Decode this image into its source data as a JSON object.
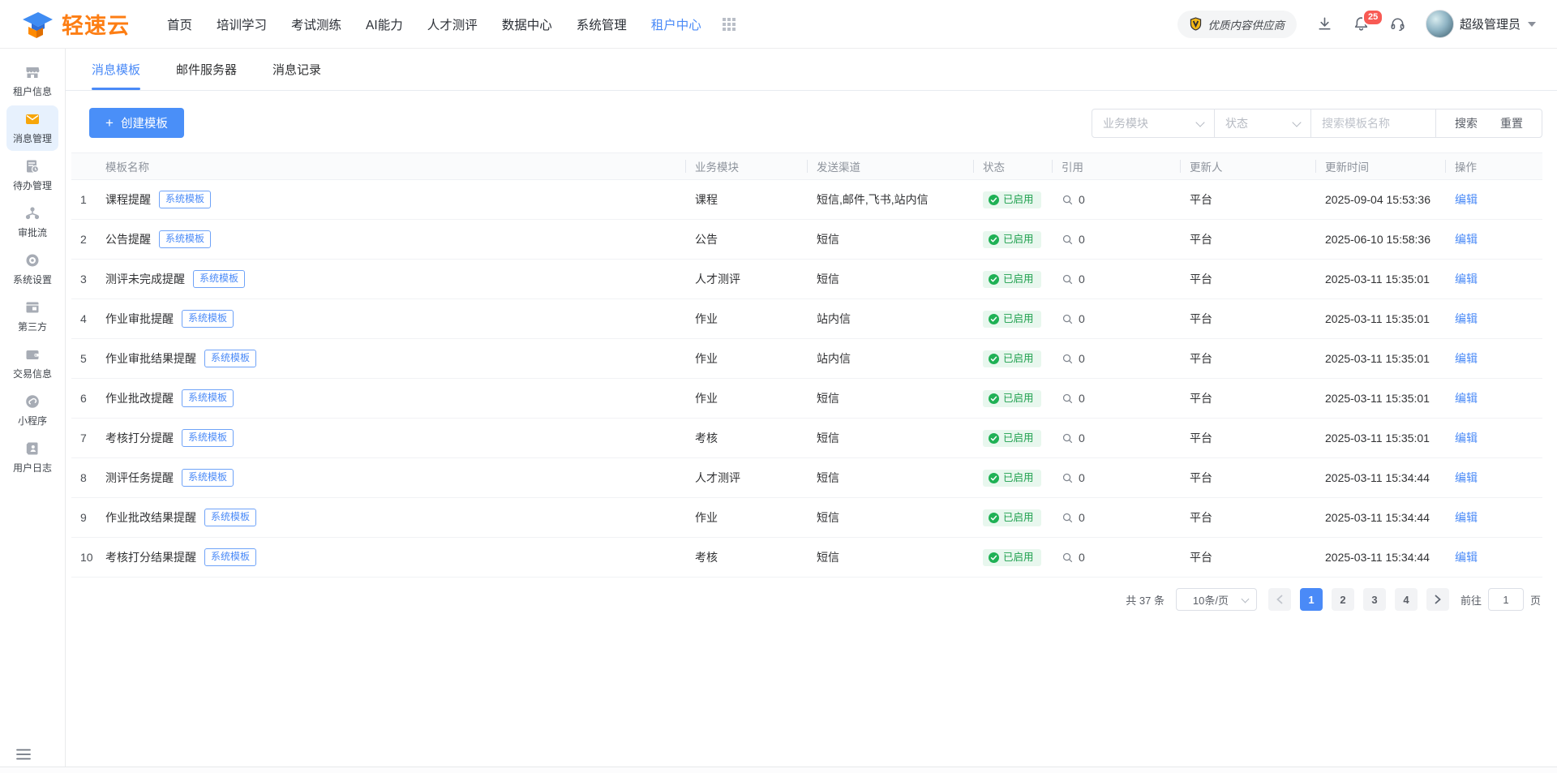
{
  "navbar": {
    "brand": "轻速云",
    "menu": [
      "首页",
      "培训学习",
      "考试测练",
      "AI能力",
      "人才测评",
      "数据中心",
      "系统管理",
      "租户中心"
    ],
    "active_menu": "租户中心",
    "supplier_badge": "优质内容供应商",
    "notification_count": "25",
    "user_name": "超级管理员"
  },
  "sidebar": {
    "items": [
      {
        "label": "租户信息",
        "icon": "tenant-info",
        "active": false
      },
      {
        "label": "消息管理",
        "icon": "message-management",
        "active": true
      },
      {
        "label": "待办管理",
        "icon": "todo-management",
        "active": false
      },
      {
        "label": "审批流",
        "icon": "approval-flow",
        "active": false
      },
      {
        "label": "系统设置",
        "icon": "system-settings",
        "active": false
      },
      {
        "label": "第三方",
        "icon": "third-party",
        "active": false
      },
      {
        "label": "交易信息",
        "icon": "transaction-info",
        "active": false
      },
      {
        "label": "小程序",
        "icon": "mini-program",
        "active": false
      },
      {
        "label": "用户日志",
        "icon": "user-log",
        "active": false
      }
    ]
  },
  "tabs": [
    "消息模板",
    "邮件服务器",
    "消息记录"
  ],
  "active_tab": "消息模板",
  "toolbar": {
    "create_label": "创建模板",
    "filters": {
      "module_placeholder": "业务模块",
      "status_placeholder": "状态",
      "search_placeholder": "搜索模板名称",
      "search_label": "搜索",
      "reset_label": "重置"
    }
  },
  "table": {
    "columns": [
      "模板名称",
      "业务模块",
      "发送渠道",
      "状态",
      "引用",
      "更新人",
      "更新时间",
      "操作"
    ],
    "edit_label": "编辑",
    "rows": [
      {
        "index": "1",
        "name": "课程提醒",
        "tag": "系统模板",
        "module": "课程",
        "channels": "短信,邮件,飞书,站内信",
        "status": "已启用",
        "refs": "0",
        "updater": "平台",
        "updated": "2025-09-04 15:53:36"
      },
      {
        "index": "2",
        "name": "公告提醒",
        "tag": "系统模板",
        "module": "公告",
        "channels": "短信",
        "status": "已启用",
        "refs": "0",
        "updater": "平台",
        "updated": "2025-06-10 15:58:36"
      },
      {
        "index": "3",
        "name": "测评未完成提醒",
        "tag": "系统模板",
        "module": "人才测评",
        "channels": "短信",
        "status": "已启用",
        "refs": "0",
        "updater": "平台",
        "updated": "2025-03-11 15:35:01"
      },
      {
        "index": "4",
        "name": "作业审批提醒",
        "tag": "系统模板",
        "module": "作业",
        "channels": "站内信",
        "status": "已启用",
        "refs": "0",
        "updater": "平台",
        "updated": "2025-03-11 15:35:01"
      },
      {
        "index": "5",
        "name": "作业审批结果提醒",
        "tag": "系统模板",
        "module": "作业",
        "channels": "站内信",
        "status": "已启用",
        "refs": "0",
        "updater": "平台",
        "updated": "2025-03-11 15:35:01"
      },
      {
        "index": "6",
        "name": "作业批改提醒",
        "tag": "系统模板",
        "module": "作业",
        "channels": "短信",
        "status": "已启用",
        "refs": "0",
        "updater": "平台",
        "updated": "2025-03-11 15:35:01"
      },
      {
        "index": "7",
        "name": "考核打分提醒",
        "tag": "系统模板",
        "module": "考核",
        "channels": "短信",
        "status": "已启用",
        "refs": "0",
        "updater": "平台",
        "updated": "2025-03-11 15:35:01"
      },
      {
        "index": "8",
        "name": "测评任务提醒",
        "tag": "系统模板",
        "module": "人才测评",
        "channels": "短信",
        "status": "已启用",
        "refs": "0",
        "updater": "平台",
        "updated": "2025-03-11 15:34:44"
      },
      {
        "index": "9",
        "name": "作业批改结果提醒",
        "tag": "系统模板",
        "module": "作业",
        "channels": "短信",
        "status": "已启用",
        "refs": "0",
        "updater": "平台",
        "updated": "2025-03-11 15:34:44"
      },
      {
        "index": "10",
        "name": "考核打分结果提醒",
        "tag": "系统模板",
        "module": "考核",
        "channels": "短信",
        "status": "已启用",
        "refs": "0",
        "updater": "平台",
        "updated": "2025-03-11 15:34:44"
      }
    ]
  },
  "pagination": {
    "total": "共 37 条",
    "page_size": "10条/页",
    "pages": [
      "1",
      "2",
      "3",
      "4"
    ],
    "active_page": "1",
    "goto_prefix": "前往",
    "goto_value": "1",
    "goto_suffix": "页"
  },
  "colors": {
    "accent_blue": "#4a8af7",
    "brand_orange": "#fd7e14",
    "status_green": "#1fb155",
    "status_bg": "#e8f7ee",
    "notification_red": "#f85a54",
    "shield_gold": "#f3b717"
  }
}
